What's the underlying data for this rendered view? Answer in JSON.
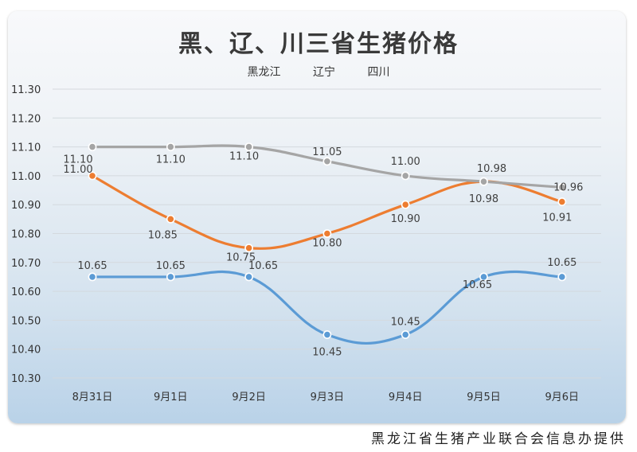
{
  "chart_data": {
    "type": "line",
    "title": "黑、辽、川三省生猪价格",
    "categories": [
      "8月31日",
      "9月1日",
      "9月2日",
      "9月3日",
      "9月4日",
      "9月5日",
      "9月6日"
    ],
    "ylim": [
      10.3,
      11.3
    ],
    "yticks": [
      "10.30",
      "10.40",
      "10.50",
      "10.60",
      "10.70",
      "10.80",
      "10.90",
      "11.00",
      "11.10",
      "11.20",
      "11.30"
    ],
    "grid": true,
    "legend_position": "top",
    "series": [
      {
        "name": "黑龙江",
        "color": "#5b9bd5",
        "values": [
          10.65,
          10.65,
          10.65,
          10.45,
          10.45,
          10.65,
          10.65
        ],
        "labels": [
          "10.65",
          "10.65",
          "10.65",
          "10.45",
          "10.45",
          "10.65",
          "10.65"
        ]
      },
      {
        "name": "辽宁",
        "color": "#ed7d31",
        "values": [
          11.0,
          10.85,
          10.75,
          10.8,
          10.9,
          10.98,
          10.91
        ],
        "labels": [
          "11.00",
          "10.85",
          "10.75",
          "10.80",
          "10.90",
          "10.98",
          "10.91"
        ]
      },
      {
        "name": "四川",
        "color": "#a5a5a5",
        "values": [
          11.1,
          11.1,
          11.1,
          11.05,
          11.0,
          10.98,
          10.96
        ],
        "labels": [
          "11.10",
          "11.10",
          "11.10",
          "11.05",
          "11.00",
          "10.98",
          "10.96"
        ]
      }
    ]
  },
  "credit": "黑龙江省生猪产业联合会信息办提供"
}
